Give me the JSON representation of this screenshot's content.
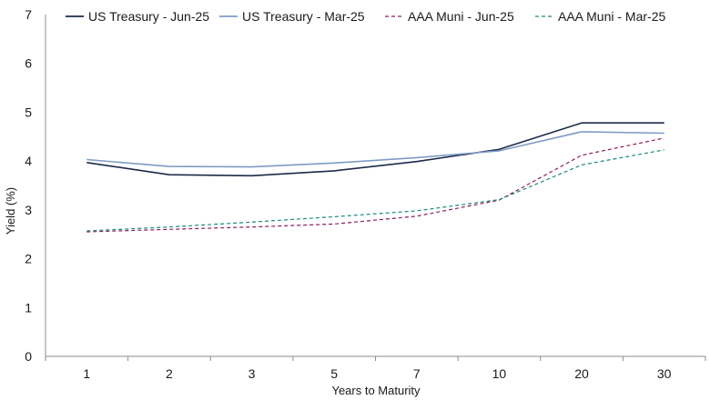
{
  "chart_data": {
    "type": "line",
    "title": "",
    "xlabel": "Years to Maturity",
    "ylabel": "Yield (%)",
    "categories": [
      "1",
      "2",
      "3",
      "5",
      "7",
      "10",
      "20",
      "30"
    ],
    "ylim": [
      0,
      7
    ],
    "yticks": [
      "0",
      "1",
      "2",
      "3",
      "4",
      "5",
      "6",
      "7"
    ],
    "grid": false,
    "legend_position": "top",
    "series": [
      {
        "name": "US Treasury - Jun-25",
        "color": "#1c2a4a",
        "dashed": false,
        "values": [
          3.97,
          3.72,
          3.7,
          3.8,
          3.99,
          4.24,
          4.78,
          4.78
        ]
      },
      {
        "name": "US Treasury - Mar-25",
        "color": "#7f9bc7",
        "dashed": false,
        "values": [
          4.03,
          3.89,
          3.88,
          3.96,
          4.07,
          4.21,
          4.6,
          4.57
        ]
      },
      {
        "name": "AAA Muni - Jun-25",
        "color": "#8b1e5c",
        "dashed": true,
        "values": [
          2.55,
          2.6,
          2.65,
          2.71,
          2.87,
          3.2,
          4.12,
          4.47
        ]
      },
      {
        "name": "AAA Muni - Mar-25",
        "color": "#1a8a7a",
        "dashed": true,
        "values": [
          2.57,
          2.65,
          2.75,
          2.86,
          2.98,
          3.21,
          3.92,
          4.23
        ]
      }
    ]
  }
}
